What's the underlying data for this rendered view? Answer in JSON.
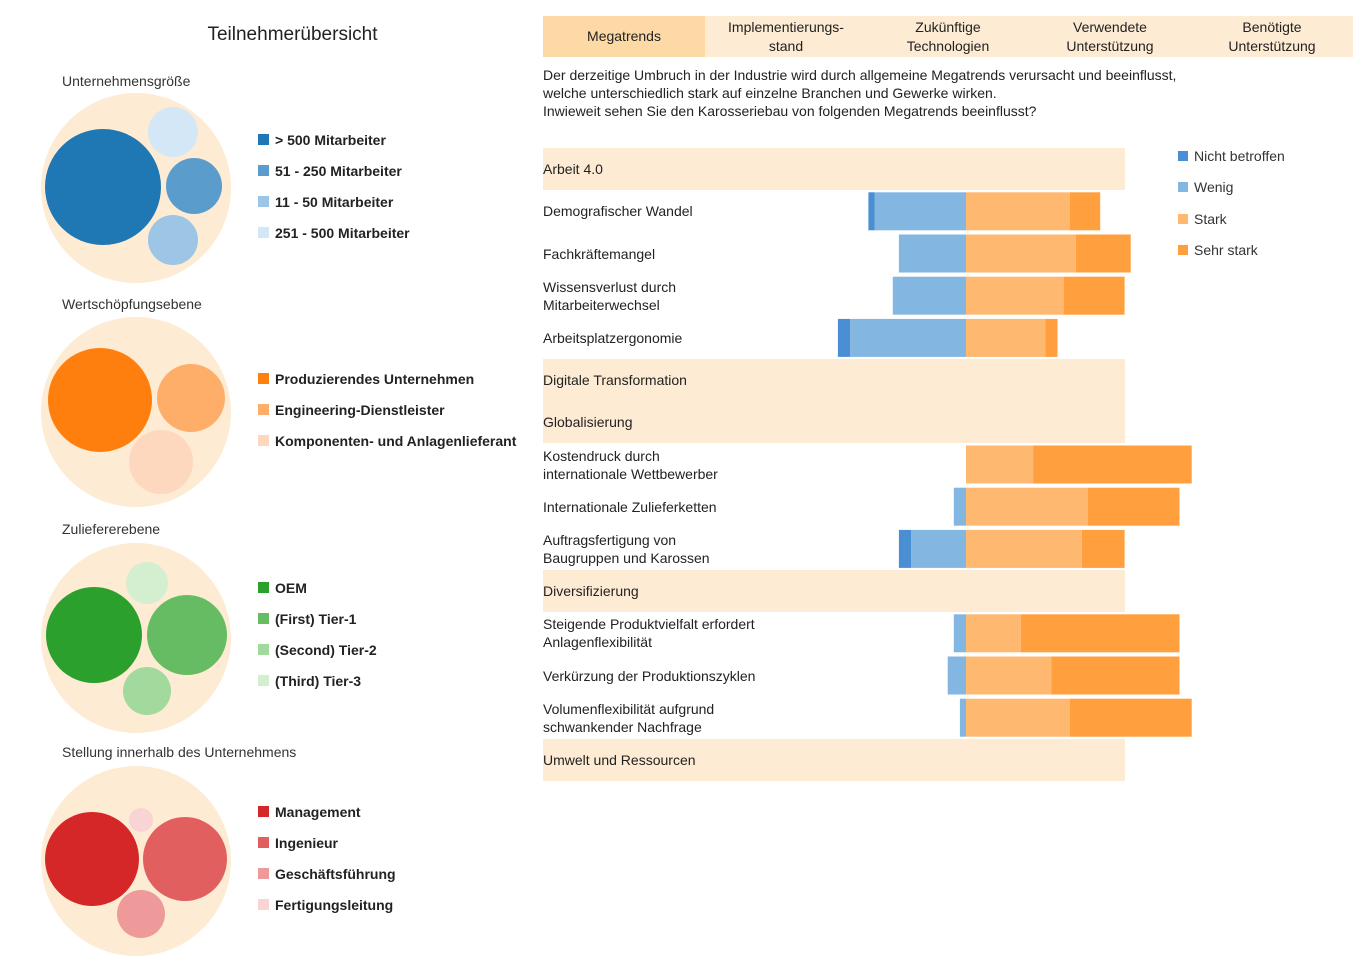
{
  "left": {
    "title": "Teilnehmerübersicht",
    "groups": [
      {
        "title": "Unternehmensgröße",
        "background": "#fdebd3",
        "items": [
          {
            "label": "> 500 Mitarbeiter",
            "color": "#1f77b4"
          },
          {
            "label": "51 - 250 Mitarbeiter",
            "color": "#5a9ccb"
          },
          {
            "label": "11 - 50 Mitarbeiter",
            "color": "#9cc5e6"
          },
          {
            "label": "251 - 500 Mitarbeiter",
            "color": "#d3e7f7"
          }
        ]
      },
      {
        "title": "Wertschöpfungsebene",
        "background": "#fdebd3",
        "items": [
          {
            "label": "Produzierendes Unternehmen",
            "color": "#ff7f0e"
          },
          {
            "label": "Engineering-Dienstleister",
            "color": "#ffae6a"
          },
          {
            "label": "Komponenten- und Anlagenlieferant",
            "color": "#fdd8be"
          }
        ]
      },
      {
        "title": "Zuliefererebene",
        "background": "#fdebd3",
        "items": [
          {
            "label": "OEM",
            "color": "#2ca02c"
          },
          {
            "label": "(First) Tier-1",
            "color": "#65bc62"
          },
          {
            "label": "(Second) Tier-2",
            "color": "#a2d99c"
          },
          {
            "label": "(Third) Tier-3",
            "color": "#d4efcf"
          }
        ]
      },
      {
        "title": "Stellung innerhalb des Unternehmens",
        "background": "#fdebd3",
        "items": [
          {
            "label": "Management",
            "color": "#d62728"
          },
          {
            "label": "Ingenieur",
            "color": "#e15f5f"
          },
          {
            "label": "Geschäftsführung",
            "color": "#ee9a9a"
          },
          {
            "label": "Fertigungsleitung",
            "color": "#f9d4d4"
          }
        ]
      }
    ]
  },
  "tabs": [
    {
      "label": "Megatrends",
      "active": true
    },
    {
      "label": "Implementierungs-\nstand",
      "active": false
    },
    {
      "label": "Zukünftige\nTechnologien",
      "active": false
    },
    {
      "label": "Verwendete\nUnterstützung",
      "active": false
    },
    {
      "label": "Benötigte\nUnterstützung",
      "active": false
    }
  ],
  "question": "Der derzeitige Umbruch in der Industrie wird durch allgemeine Megatrends verursacht und beeinflusst,\nwelche unterschiedlich stark auf einzelne Branchen und Gewerke wirken.\nInwieweit sehen Sie den Karosseriebau von folgenden Megatrends beeinflusst?",
  "chart_data": {
    "type": "bar",
    "orientation": "horizontal",
    "stacking": "diverging",
    "legend_position": "right",
    "series": [
      {
        "name": "Nicht betroffen",
        "color": "#4a8fd4",
        "side": "negative"
      },
      {
        "name": "Wenig",
        "color": "#84b6e2",
        "side": "negative"
      },
      {
        "name": "Stark",
        "color": "#ffb870",
        "side": "positive"
      },
      {
        "name": "Sehr stark",
        "color": "#ff9f3d",
        "side": "positive"
      }
    ],
    "rows": [
      {
        "label": "Arbeit 4.0",
        "category": true
      },
      {
        "label": "Demografischer Wandel",
        "values": [
          1,
          15,
          17,
          5
        ]
      },
      {
        "label": "Fachkräftemangel",
        "values": [
          0,
          11,
          18,
          9
        ]
      },
      {
        "label": "Wissensverlust durch\nMitarbeiterwechsel",
        "values": [
          0,
          12,
          16,
          10
        ]
      },
      {
        "label": "Arbeitsplatzergonomie",
        "values": [
          2,
          19,
          13,
          2
        ]
      },
      {
        "label": "Digitale Transformation",
        "category": true
      },
      {
        "label": "Globalisierung",
        "category": true
      },
      {
        "label": "Kostendruck durch\ninternationale Wettbewerber",
        "values": [
          0,
          0,
          11,
          26
        ]
      },
      {
        "label": "Internationale Zulieferketten",
        "values": [
          0,
          2,
          20,
          15
        ]
      },
      {
        "label": "Auftragsfertigung von\nBaugruppen und Karossen",
        "values": [
          2,
          9,
          19,
          7
        ]
      },
      {
        "label": "Diversifizierung",
        "category": true
      },
      {
        "label": "Steigende Produktvielfalt erfordert\nAnlagenflexibilität",
        "values": [
          0,
          2,
          9,
          26
        ]
      },
      {
        "label": "Verkürzung der Produktionszyklen",
        "values": [
          0,
          3,
          14,
          21
        ]
      },
      {
        "label": "Volumenflexibilität aufgrund\nschwankender Nachfrage",
        "values": [
          0,
          1,
          17,
          20
        ]
      },
      {
        "label": "Umwelt und Ressourcen",
        "category": true
      }
    ]
  }
}
